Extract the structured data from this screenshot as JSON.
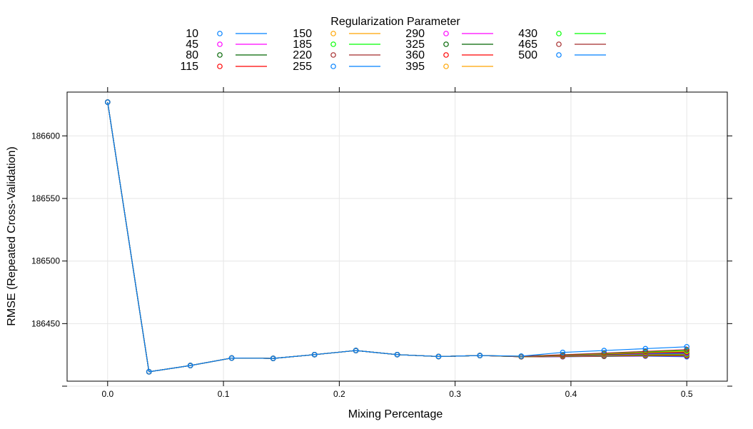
{
  "chart_data": {
    "type": "line",
    "title": "",
    "legend_title": "Regularization Parameter",
    "xlabel": "Mixing Percentage",
    "ylabel": "RMSE (Repeated Cross-Validation)",
    "xlim": [
      -0.035,
      0.535
    ],
    "ylim": [
      186404,
      186635
    ],
    "x_ticks": [
      0.0,
      0.1,
      0.2,
      0.3,
      0.4,
      0.5
    ],
    "x_tick_labels": [
      "0.0",
      "0.1",
      "0.2",
      "0.3",
      "0.4",
      "0.5"
    ],
    "y_ticks": [
      186400,
      186450,
      186500,
      186550,
      186600
    ],
    "y_tick_labels": [
      "",
      "186450",
      "186500",
      "186550",
      "186600"
    ],
    "grid": true,
    "legend_position": "top",
    "x": [
      0.0,
      0.0357,
      0.0714,
      0.1071,
      0.1429,
      0.1786,
      0.2143,
      0.25,
      0.2857,
      0.3214,
      0.3571,
      0.3929,
      0.4286,
      0.4643,
      0.5
    ],
    "series": [
      {
        "name": "10",
        "color": "#0080ff",
        "values": [
          186627,
          186411.5,
          186416.5,
          186422.5,
          186422.2,
          186425.2,
          186428.5,
          186425.2,
          186423.7,
          186424.5,
          186423.5,
          186423.5,
          186423.8,
          186424.0,
          186423.5
        ]
      },
      {
        "name": "45",
        "color": "#ff00ff",
        "values": [
          186627,
          186411.5,
          186416.5,
          186422.5,
          186422.2,
          186425.2,
          186428.5,
          186425.2,
          186423.7,
          186424.5,
          186423.5,
          186423.6,
          186423.9,
          186424.2,
          186424.0
        ]
      },
      {
        "name": "80",
        "color": "#006400",
        "values": [
          186627,
          186411.5,
          186416.5,
          186422.5,
          186422.2,
          186425.2,
          186428.5,
          186425.2,
          186423.7,
          186424.5,
          186423.5,
          186423.7,
          186424.0,
          186424.4,
          186424.3
        ]
      },
      {
        "name": "115",
        "color": "#ff0000",
        "values": [
          186627,
          186411.5,
          186416.5,
          186422.5,
          186422.2,
          186425.2,
          186428.5,
          186425.2,
          186423.7,
          186424.5,
          186423.5,
          186423.8,
          186424.2,
          186424.7,
          186424.7
        ]
      },
      {
        "name": "150",
        "color": "#ffa500",
        "values": [
          186627,
          186411.5,
          186416.5,
          186422.5,
          186422.2,
          186425.2,
          186428.5,
          186425.2,
          186423.7,
          186424.5,
          186423.6,
          186423.9,
          186424.4,
          186425.0,
          186425.1
        ]
      },
      {
        "name": "185",
        "color": "#00ff00",
        "values": [
          186627,
          186411.5,
          186416.5,
          186422.5,
          186422.2,
          186425.2,
          186428.5,
          186425.2,
          186423.7,
          186424.5,
          186423.6,
          186424.0,
          186424.6,
          186425.3,
          186425.5
        ]
      },
      {
        "name": "220",
        "color": "#a52a2a",
        "values": [
          186627,
          186411.5,
          186416.5,
          186422.5,
          186422.2,
          186425.2,
          186428.5,
          186425.2,
          186423.7,
          186424.5,
          186423.6,
          186424.1,
          186424.8,
          186425.6,
          186425.9
        ]
      },
      {
        "name": "255",
        "color": "#0080ff",
        "values": [
          186627,
          186411.5,
          186416.5,
          186422.5,
          186422.2,
          186425.2,
          186428.5,
          186425.2,
          186423.7,
          186424.5,
          186423.7,
          186424.3,
          186425.0,
          186425.9,
          186426.3
        ]
      },
      {
        "name": "290",
        "color": "#ff00ff",
        "values": [
          186627,
          186411.5,
          186416.5,
          186422.5,
          186422.2,
          186425.2,
          186428.5,
          186425.2,
          186423.7,
          186424.5,
          186423.7,
          186424.4,
          186425.2,
          186426.2,
          186426.7
        ]
      },
      {
        "name": "325",
        "color": "#006400",
        "values": [
          186627,
          186411.5,
          186416.5,
          186422.5,
          186422.2,
          186425.2,
          186428.5,
          186425.2,
          186423.7,
          186424.5,
          186423.7,
          186424.5,
          186425.4,
          186426.5,
          186427.1
        ]
      },
      {
        "name": "360",
        "color": "#ff0000",
        "values": [
          186627,
          186411.5,
          186416.5,
          186422.5,
          186422.2,
          186425.2,
          186428.5,
          186425.2,
          186423.7,
          186424.5,
          186423.8,
          186424.6,
          186425.6,
          186426.8,
          186427.5
        ]
      },
      {
        "name": "395",
        "color": "#ffa500",
        "values": [
          186627,
          186411.5,
          186416.5,
          186422.5,
          186422.2,
          186425.2,
          186428.5,
          186425.2,
          186423.7,
          186424.5,
          186423.8,
          186424.8,
          186425.8,
          186427.1,
          186427.9
        ]
      },
      {
        "name": "430",
        "color": "#00ff00",
        "values": [
          186627,
          186411.5,
          186416.5,
          186422.5,
          186422.2,
          186425.2,
          186428.5,
          186425.2,
          186423.7,
          186424.5,
          186423.9,
          186424.9,
          186426.1,
          186427.4,
          186428.5
        ]
      },
      {
        "name": "465",
        "color": "#a52a2a",
        "values": [
          186627,
          186411.5,
          186416.5,
          186422.5,
          186422.2,
          186425.2,
          186428.5,
          186425.2,
          186423.7,
          186424.5,
          186423.9,
          186425.1,
          186426.4,
          186427.8,
          186429.2
        ]
      },
      {
        "name": "500",
        "color": "#0080ff",
        "values": [
          186627,
          186411.5,
          186416.5,
          186422.5,
          186422.2,
          186425.2,
          186428.5,
          186425.2,
          186423.7,
          186424.5,
          186424.0,
          186427.0,
          186428.5,
          186430.0,
          186431.5
        ]
      }
    ],
    "legend_columns": [
      [
        "10",
        "45",
        "80",
        "115"
      ],
      [
        "150",
        "185",
        "220",
        "255"
      ],
      [
        "290",
        "325",
        "360",
        "395"
      ],
      [
        "430",
        "465",
        "500"
      ]
    ]
  }
}
